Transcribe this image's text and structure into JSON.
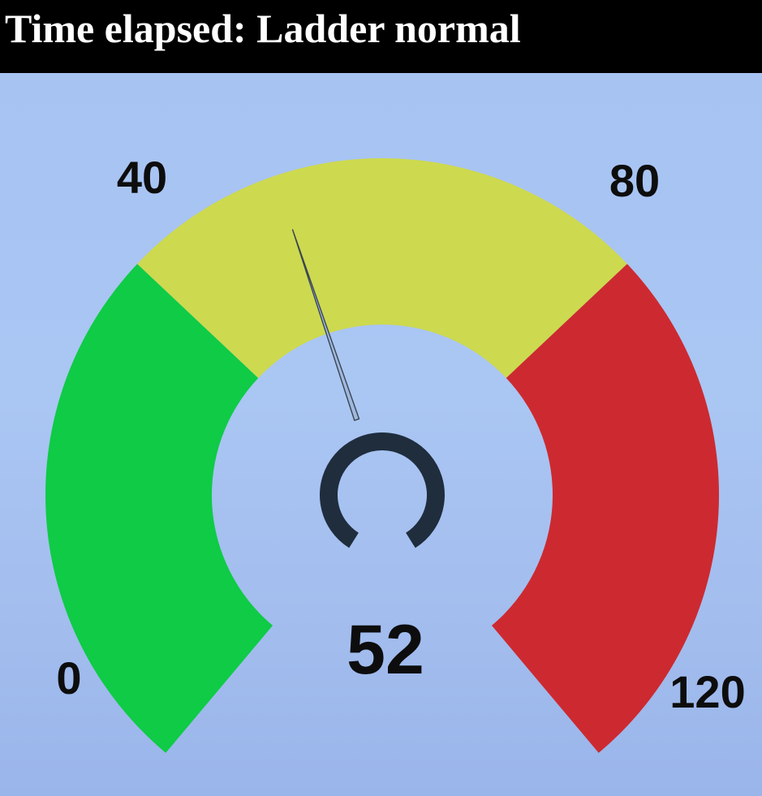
{
  "header": {
    "title": "Time elapsed: Ladder normal"
  },
  "chart_data": {
    "type": "gauge",
    "value": 52,
    "value_label": "52",
    "min": 0,
    "max": 120,
    "tick_labels": [
      {
        "value": 0,
        "label": "0"
      },
      {
        "value": 40,
        "label": "40"
      },
      {
        "value": 80,
        "label": "80"
      },
      {
        "value": 120,
        "label": "120"
      }
    ],
    "bands": [
      {
        "from": 0,
        "to": 40,
        "color": "#0fcb46"
      },
      {
        "from": 40,
        "to": 80,
        "color": "#cdd94f"
      },
      {
        "from": 80,
        "to": 120,
        "color": "#cc2a30"
      }
    ],
    "needle_color": "#3a4650",
    "hub_color": "#1f2d3d",
    "background_color": "#a7c3f2"
  }
}
